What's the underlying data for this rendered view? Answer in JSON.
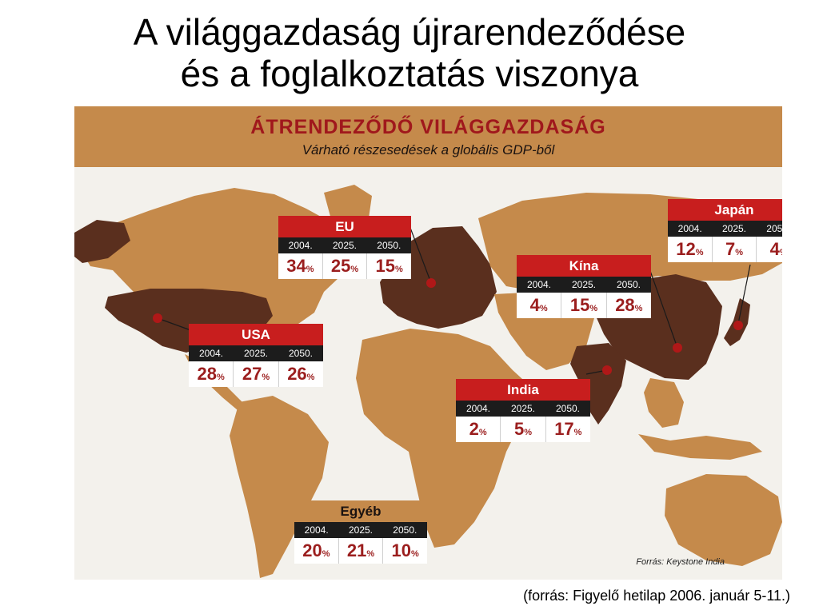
{
  "slide": {
    "title_line1": "A világgazdaság újrarendeződése",
    "title_line2": "és a foglalkoztatás viszonya",
    "footnote": "(forrás: Figyelő hetilap 2006. január 5-11.)"
  },
  "map": {
    "title": "ÁTRENDEZŐDŐ VILÁGGAZDASÁG",
    "subtitle": "Várható részesedések a globális GDP-ből",
    "credit": "Forrás: Keystone India",
    "colors": {
      "ocean": "#f3f1ec",
      "land": "#c58a4b",
      "highlight_land": "#5a2f1e",
      "banner": "#c58a4b",
      "marker": "#b01818",
      "box_header": "#c81e1e",
      "box_years": "#1c1c1c",
      "value_text": "#9b1e1e"
    },
    "unit": "%",
    "years": [
      "2004.",
      "2025.",
      "2050."
    ],
    "regions": [
      {
        "id": "eu",
        "name": "EU",
        "values": [
          "34",
          "25",
          "15"
        ]
      },
      {
        "id": "usa",
        "name": "USA",
        "values": [
          "28",
          "27",
          "26"
        ]
      },
      {
        "id": "china",
        "name": "Kína",
        "values": [
          "4",
          "15",
          "28"
        ]
      },
      {
        "id": "japan",
        "name": "Japán",
        "values": [
          "12",
          "7",
          "4"
        ]
      },
      {
        "id": "india",
        "name": "India",
        "values": [
          "2",
          "5",
          "17"
        ]
      },
      {
        "id": "other",
        "name": "Egyéb",
        "values": [
          "20",
          "21",
          "10"
        ]
      }
    ]
  }
}
